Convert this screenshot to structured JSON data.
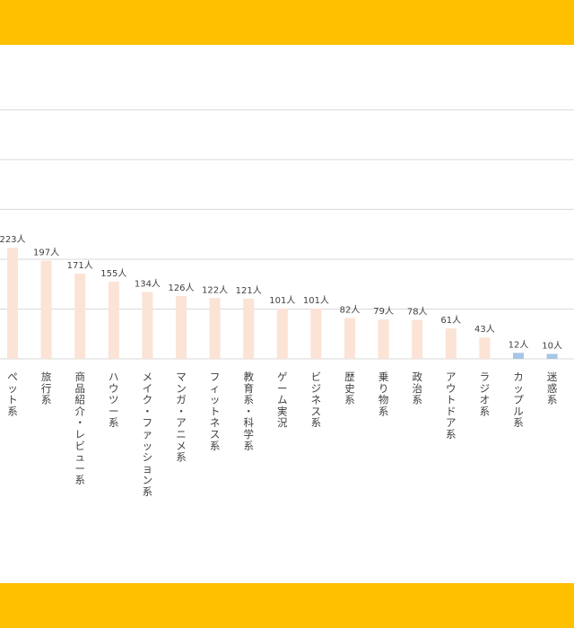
{
  "colors": {
    "band": "#FFC000",
    "bar_primary": "#FBE3D6",
    "bar_secondary": "#A8C6E6",
    "grid": "#D9D9D9",
    "text": "#404040"
  },
  "chart_data": {
    "type": "bar",
    "categories": [
      "ペット系",
      "旅行系",
      "商品紹介・レビュー系",
      "ハウツー系",
      "メイク・ファッション系",
      "マンガ・アニメ系",
      "フィットネス系",
      "教育系・科学系",
      "ゲーム実況",
      "ビジネス系",
      "歴史系",
      "乗り物系",
      "政治系",
      "アウトドア系",
      "ラジオ系",
      "カップル系",
      "迷惑系"
    ],
    "values": [
      223,
      197,
      171,
      155,
      134,
      126,
      122,
      121,
      101,
      101,
      82,
      79,
      78,
      61,
      43,
      12,
      10
    ],
    "data_labels": [
      "223人",
      "197人",
      "171人",
      "155人",
      "134人",
      "126人",
      "122人",
      "121人",
      "101人",
      "101人",
      "82人",
      "79人",
      "78人",
      "61人",
      "43人",
      "12人",
      "10人"
    ],
    "highlighted": [
      false,
      false,
      false,
      false,
      false,
      false,
      false,
      false,
      false,
      false,
      false,
      false,
      false,
      false,
      false,
      true,
      true
    ],
    "unit": "人",
    "ylim": [
      0,
      500
    ],
    "grid": true,
    "legend": "none",
    "title": "",
    "xlabel": "",
    "ylabel": ""
  }
}
